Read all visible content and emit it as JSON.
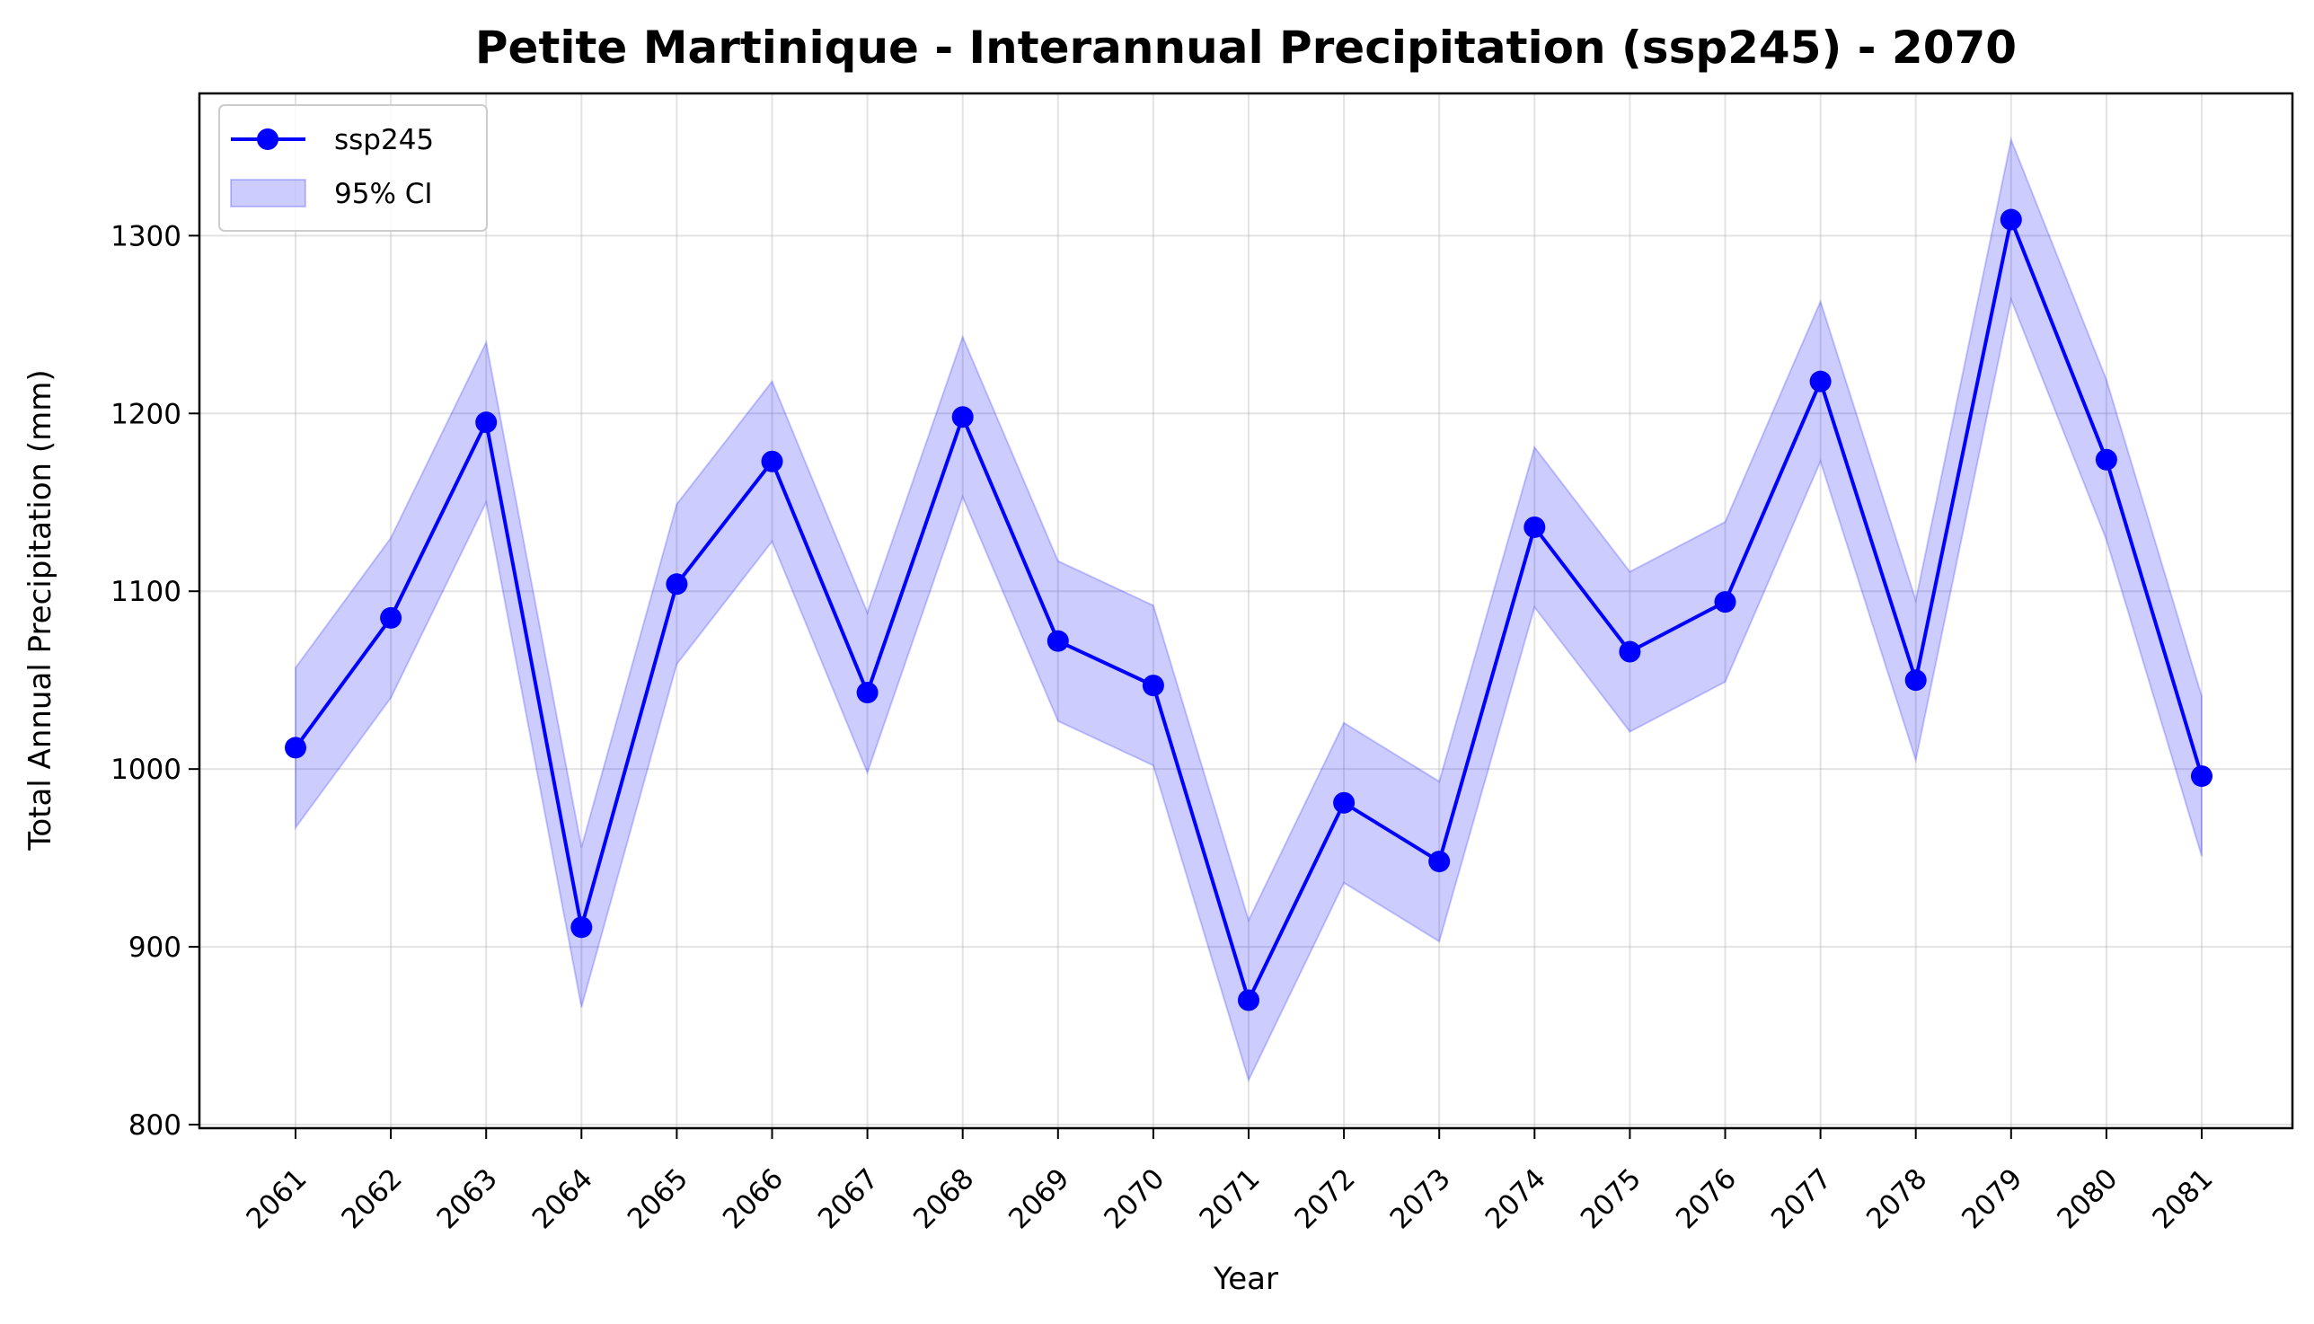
{
  "chart_data": {
    "type": "line",
    "title": "Petite Martinique - Interannual Precipitation (ssp245) - 2070",
    "xlabel": "Year",
    "ylabel": "Total Annual Precipitation (mm)",
    "x": [
      "2061",
      "2062",
      "2063",
      "2064",
      "2065",
      "2066",
      "2067",
      "2068",
      "2069",
      "2070",
      "2071",
      "2072",
      "2073",
      "2074",
      "2075",
      "2076",
      "2077",
      "2078",
      "2079",
      "2080",
      "2081"
    ],
    "ylim": [
      798,
      1380
    ],
    "yticks": [
      "800",
      "900",
      "1000",
      "1100",
      "1200",
      "1300"
    ],
    "grid": true,
    "legend_position": "top-left",
    "series": [
      {
        "name": "ssp245",
        "color": "#0000ff",
        "marker": "circle",
        "values": [
          1012,
          1085,
          1195,
          911,
          1104,
          1173,
          1043,
          1198,
          1072,
          1047,
          870,
          981,
          948,
          1136,
          1066,
          1094,
          1218,
          1050,
          1309,
          1174,
          996
        ],
        "ci_name": "95% CI",
        "ci_color": "#0000ff",
        "ci_lower": [
          967,
          1040,
          1150,
          866,
          1059,
          1128,
          998,
          1153,
          1027,
          1002,
          825,
          936,
          903,
          1091,
          1021,
          1049,
          1173,
          1005,
          1264,
          1129,
          951
        ],
        "ci_upper": [
          1057,
          1130,
          1240,
          956,
          1149,
          1218,
          1088,
          1243,
          1117,
          1092,
          915,
          1026,
          993,
          1181,
          1111,
          1139,
          1263,
          1095,
          1354,
          1219,
          1041
        ]
      }
    ]
  }
}
